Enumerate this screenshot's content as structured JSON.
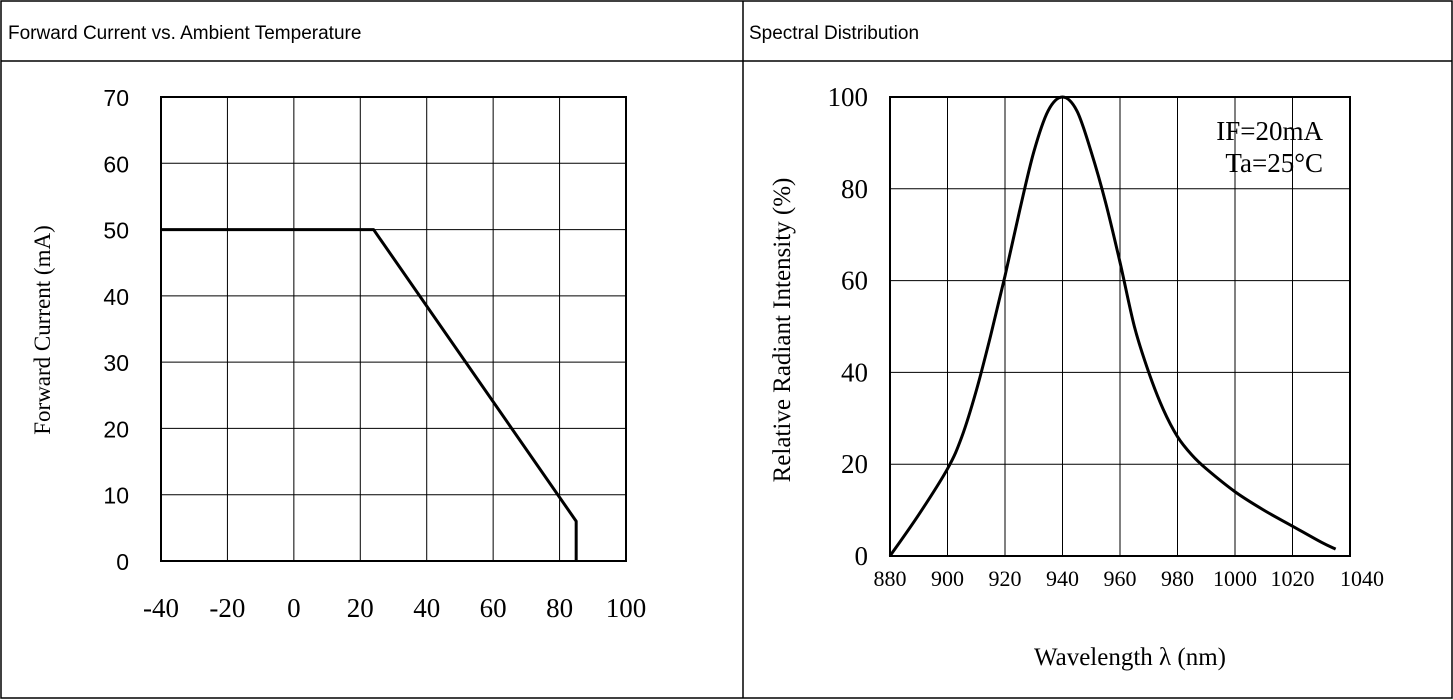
{
  "panels": {
    "left_title": "Forward Current vs. Ambient Temperature",
    "right_title": "Spectral Distribution"
  },
  "chart_data": [
    {
      "type": "line",
      "title": "Forward Current vs. Ambient Temperature",
      "xlabel": "",
      "ylabel": "Forward Current (mA)",
      "xlim": [
        -40,
        100
      ],
      "ylim": [
        0,
        70
      ],
      "x_ticks": [
        -40,
        -20,
        0,
        20,
        40,
        60,
        80,
        100
      ],
      "y_ticks": [
        0,
        10,
        20,
        30,
        40,
        50,
        60,
        70
      ],
      "x_tick_labels": [
        "-40",
        "-20",
        "0",
        "20",
        "40",
        "60",
        "80",
        "100"
      ],
      "y_tick_labels": [
        "0",
        "10",
        "20",
        "30",
        "40",
        "50",
        "60",
        "70"
      ],
      "grid": true,
      "series": [
        {
          "x": [
            -40,
            24,
            85,
            85
          ],
          "y": [
            50,
            50,
            6,
            0
          ]
        }
      ]
    },
    {
      "type": "line",
      "title": "Spectral Distribution",
      "xlabel": "Wavelength  λ  (nm)",
      "ylabel": "Relative Radiant Intensity (%)",
      "xlim": [
        880,
        1040
      ],
      "ylim": [
        0,
        100
      ],
      "x_ticks": [
        880,
        900,
        920,
        940,
        960,
        980,
        1000,
        1020,
        1040
      ],
      "y_ticks": [
        0,
        20,
        40,
        60,
        80,
        100
      ],
      "x_tick_labels": [
        "880",
        "900",
        "920",
        "940",
        "960",
        "980",
        "1000",
        "1020",
        "1040"
      ],
      "y_tick_labels": [
        "0",
        "20",
        "40",
        "60",
        "80",
        "100"
      ],
      "grid": true,
      "annotations": [
        "IF=20mA",
        "Ta=25°C"
      ],
      "series": [
        {
          "x": [
            880,
            890,
            900,
            905,
            910,
            915,
            920,
            925,
            930,
            935,
            940,
            945,
            950,
            955,
            960,
            965,
            970,
            975,
            980,
            985,
            990,
            1000,
            1010,
            1020,
            1030,
            1035
          ],
          "y": [
            0,
            9,
            19,
            26,
            36,
            48,
            61,
            75,
            88,
            97,
            100,
            97,
            88,
            77,
            64,
            50,
            40,
            32,
            26,
            22,
            19,
            14,
            10,
            6.5,
            3,
            1.5
          ]
        }
      ]
    }
  ]
}
